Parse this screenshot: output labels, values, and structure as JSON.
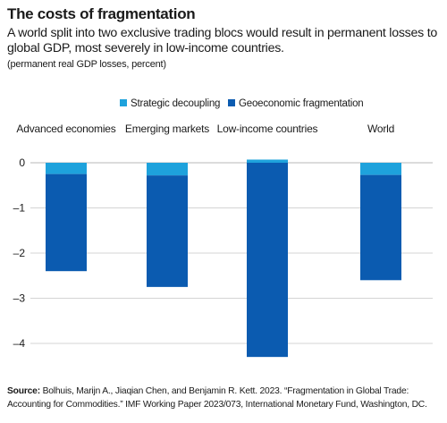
{
  "header": {
    "title": "The costs of fragmentation",
    "subtitle": "A world split into two exclusive trading blocs would result in permanent losses to global GDP, most severely in low-income countries.",
    "unit_note": "(permanent real GDP losses, percent)"
  },
  "colors": {
    "strategic": "#1ea2dc",
    "geoeconomic": "#0b5bb0",
    "grid": "#d4d4d4",
    "zero_line": "#b8b8b8"
  },
  "chart_data": {
    "type": "bar",
    "stacked": true,
    "categories": [
      "Advanced economies",
      "Emerging markets",
      "Low-income countries",
      "World"
    ],
    "series": [
      {
        "name": "Strategic decoupling",
        "values": [
          -0.25,
          -0.28,
          0.07,
          -0.27
        ]
      },
      {
        "name": "Geoeconomic fragmentation",
        "values": [
          -2.15,
          -2.47,
          -4.3,
          -2.33
        ]
      }
    ],
    "ylim": [
      -4.4,
      0.2
    ],
    "yticks": [
      0,
      -1,
      -2,
      -3,
      -4
    ],
    "ytick_labels": [
      "0",
      "–1",
      "–2",
      "–3",
      "–4"
    ],
    "grid": true,
    "legend_position": "top"
  },
  "footer": {
    "source_label": "Source:",
    "source_text": "Bolhuis, Marijn A., Jiaqian Chen, and Benjamin R. Kett. 2023. “Fragmentation in Global Trade: Accounting for Commodities.” IMF Working Paper 2023/073, International Monetary Fund, Washington, DC."
  }
}
